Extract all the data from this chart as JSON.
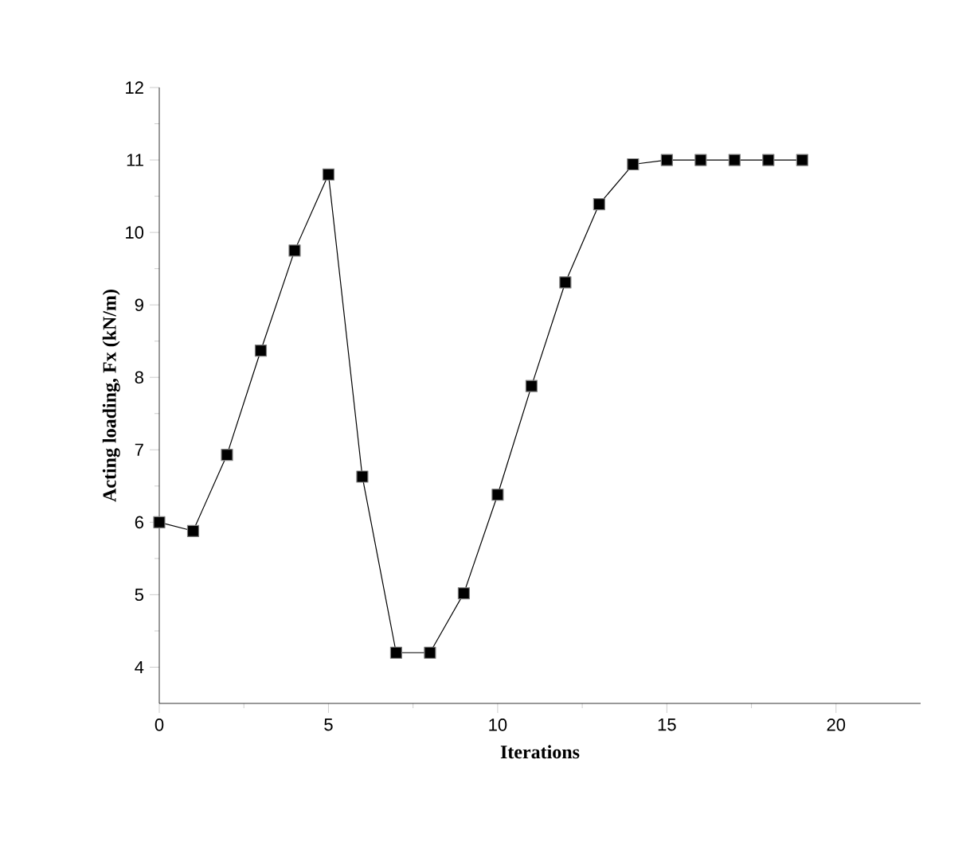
{
  "chart_data": {
    "type": "line",
    "xlabel": "Iterations",
    "ylabel": "Acting loading, Fx (kN/m)",
    "x": [
      0,
      1,
      2,
      3,
      4,
      5,
      6,
      7,
      8,
      9,
      10,
      11,
      12,
      13,
      14,
      15,
      16,
      17,
      18,
      19
    ],
    "series": [
      {
        "color": "#000000",
        "values": [
          6.0,
          5.88,
          6.93,
          8.37,
          9.75,
          10.8,
          6.63,
          4.2,
          4.2,
          5.02,
          6.38,
          7.88,
          9.31,
          10.39,
          10.94,
          11.0,
          11.0,
          11.0,
          11.0,
          11.0
        ]
      }
    ],
    "xlim": [
      0,
      22.5
    ],
    "ylim": [
      3.5,
      12
    ],
    "xticks": [
      0,
      5,
      10,
      15,
      20
    ],
    "yticks": [
      4,
      5,
      6,
      7,
      8,
      9,
      10,
      11,
      12
    ],
    "marker": "square",
    "line_style": "solid"
  }
}
